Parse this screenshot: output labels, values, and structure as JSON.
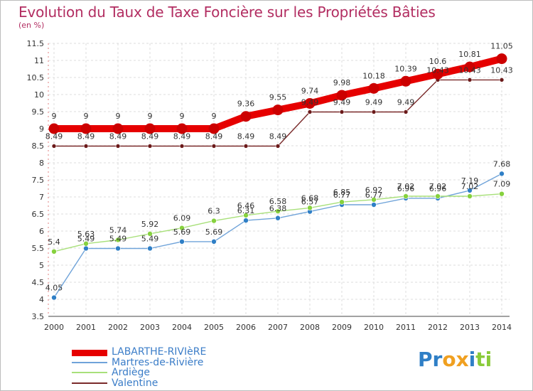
{
  "chart_data": {
    "type": "line",
    "title": "Evolution du Taux de Taxe Foncière sur les Propriétés Bâties",
    "ylabel": "(en %)",
    "xlabel": "",
    "x": [
      "2000",
      "2001",
      "2002",
      "2003",
      "2004",
      "2005",
      "2006",
      "2007",
      "2008",
      "2009",
      "2010",
      "2011",
      "2012",
      "2013",
      "2014"
    ],
    "ylim": [
      3.5,
      11.5
    ],
    "yticks": [
      "3.5",
      "4",
      "4.5",
      "5",
      "5.5",
      "6",
      "6.5",
      "7",
      "7.5",
      "8",
      "8.5",
      "9",
      "9.5",
      "10",
      "10.5",
      "11",
      "11.5"
    ],
    "grid": true,
    "series": [
      {
        "name": "LABARTHE-RIVIèRE",
        "color": "#e60000",
        "marker": "#cc0000",
        "values": [
          9,
          9,
          9,
          9,
          9,
          9,
          9.36,
          9.55,
          9.74,
          9.98,
          10.18,
          10.39,
          10.6,
          10.81,
          11.05
        ],
        "labels": [
          "9",
          "9",
          "9",
          "9",
          "9",
          "9",
          "9.36",
          "9.55",
          "9.74",
          "9.98",
          "10.18",
          "10.39",
          "10.6",
          "10.81",
          "11.05"
        ]
      },
      {
        "name": "Martres-de-Rivière",
        "color": "#6fa3d9",
        "marker": "#2f7fc6",
        "values": [
          4.05,
          5.49,
          5.49,
          5.49,
          5.69,
          5.69,
          6.31,
          6.38,
          6.57,
          6.77,
          6.77,
          6.96,
          6.96,
          7.19,
          7.68
        ],
        "labels": [
          "4.05",
          "5.49",
          "5.49",
          "5.49",
          "5.69",
          "5.69",
          "6.31",
          "6.38",
          "6.57",
          "6.77",
          "6.77",
          "6.96",
          "6.96",
          "7.19",
          "7.68"
        ]
      },
      {
        "name": "Ardiège",
        "color": "#a8e07a",
        "marker": "#86d13e",
        "values": [
          5.4,
          5.63,
          5.74,
          5.92,
          6.09,
          6.3,
          6.46,
          6.58,
          6.68,
          6.85,
          6.92,
          7.02,
          7.02,
          7.02,
          7.09
        ],
        "labels": [
          "5.4",
          "5.63",
          "5.74",
          "5.92",
          "6.09",
          "6.3",
          "6.46",
          "6.58",
          "6.68",
          "6.85",
          "6.92",
          "7.02",
          "7.02",
          "7.02",
          "7.09"
        ]
      },
      {
        "name": "Valentine",
        "color": "#7a2a2a",
        "marker": "#6b1a1a",
        "values": [
          8.49,
          8.49,
          8.49,
          8.49,
          8.49,
          8.49,
          8.49,
          8.49,
          9.49,
          9.49,
          9.49,
          9.49,
          10.43,
          10.43,
          10.43
        ],
        "labels": [
          "8.49",
          "8.49",
          "8.49",
          "8.49",
          "8.49",
          "8.49",
          "8.49",
          "8.49",
          "9.49",
          "9.49",
          "9.49",
          "9.49",
          "10.43",
          "10.43",
          "10.43"
        ]
      }
    ]
  },
  "logo": {
    "parts": [
      "Pr",
      "o",
      "x",
      "i",
      "ti"
    ],
    "colors": [
      "#2f7fc6",
      "#f0a020",
      "#f0a020",
      "#2f7fc6",
      "#8acb3a"
    ]
  }
}
